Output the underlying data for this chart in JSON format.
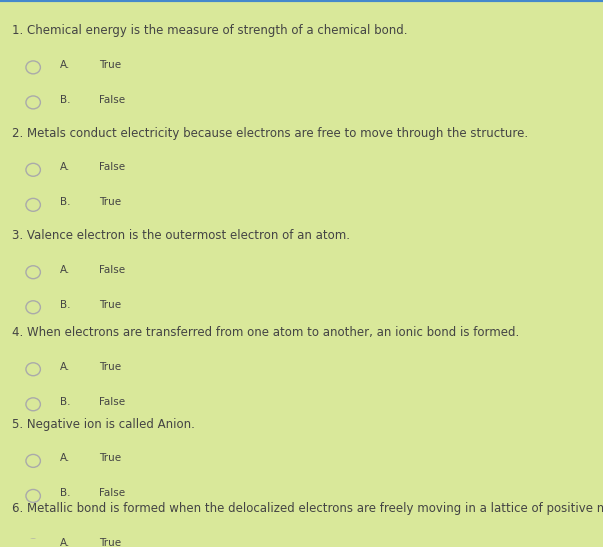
{
  "bg_color": "#d9e89a",
  "text_color": "#444444",
  "circle_color": "#aaaaaa",
  "questions": [
    {
      "number": "1.",
      "text": "Chemical energy is the measure of strength of a chemical bond.",
      "options": [
        {
          "label": "A.",
          "answer": "True"
        },
        {
          "label": "B.",
          "answer": "False"
        }
      ]
    },
    {
      "number": "2.",
      "text": "Metals conduct electricity because electrons are free to move through the structure.",
      "options": [
        {
          "label": "A.",
          "answer": "False"
        },
        {
          "label": "B.",
          "answer": "True"
        }
      ]
    },
    {
      "number": "3.",
      "text": "Valence electron is the outermost electron of an atom.",
      "options": [
        {
          "label": "A.",
          "answer": "False"
        },
        {
          "label": "B.",
          "answer": "True"
        }
      ]
    },
    {
      "number": "4.",
      "text": "When electrons are transferred from one atom to another, an ionic bond is formed.",
      "options": [
        {
          "label": "A.",
          "answer": "True"
        },
        {
          "label": "B.",
          "answer": "False"
        }
      ]
    },
    {
      "number": "5.",
      "text": "Negative ion is called Anion.",
      "options": [
        {
          "label": "A.",
          "answer": "True"
        },
        {
          "label": "B.",
          "answer": "False"
        }
      ]
    },
    {
      "number": "6.",
      "text": "Metallic bond is formed when the delocalized electrons are freely moving in a lattice of positive metal ions",
      "options": [
        {
          "label": "A.",
          "answer": "True"
        }
      ]
    }
  ],
  "figsize": [
    6.03,
    5.47
  ],
  "dpi": 100
}
